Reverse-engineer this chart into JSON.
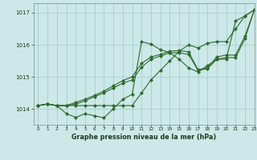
{
  "title": "Graphe pression niveau de la mer (hPa)",
  "bg_color": "#cce8e8",
  "grid_color": "#99cccc",
  "line_color": "#2d6a2d",
  "xlim": [
    -0.5,
    23
  ],
  "ylim": [
    1013.5,
    1017.3
  ],
  "yticks": [
    1014,
    1015,
    1016,
    1017
  ],
  "xticks": [
    0,
    1,
    2,
    3,
    4,
    5,
    6,
    7,
    8,
    9,
    10,
    11,
    12,
    13,
    14,
    15,
    16,
    17,
    18,
    19,
    20,
    21,
    22,
    23
  ],
  "series1": [
    1014.1,
    1014.15,
    1014.1,
    1013.85,
    1013.73,
    1013.85,
    1013.78,
    1013.72,
    1014.0,
    1014.3,
    1014.45,
    1016.1,
    1016.02,
    1015.85,
    1015.75,
    1015.55,
    1015.28,
    1015.15,
    1015.35,
    1015.55,
    1015.55,
    1016.75,
    1016.9,
    1017.1
  ],
  "series2": [
    1014.1,
    1014.15,
    1014.1,
    1014.1,
    1014.1,
    1014.1,
    1014.1,
    1014.1,
    1014.1,
    1014.1,
    1014.1,
    1014.5,
    1014.9,
    1015.2,
    1015.5,
    1015.8,
    1016.0,
    1015.9,
    1016.05,
    1016.1,
    1016.1,
    1016.5,
    1016.9,
    1017.1
  ],
  "series3": [
    1014.1,
    1014.15,
    1014.1,
    1014.1,
    1014.15,
    1014.25,
    1014.38,
    1014.5,
    1014.65,
    1014.8,
    1014.9,
    1015.3,
    1015.55,
    1015.65,
    1015.75,
    1015.75,
    1015.7,
    1015.2,
    1015.25,
    1015.55,
    1015.6,
    1015.6,
    1016.2,
    1017.1
  ],
  "series4": [
    1014.1,
    1014.15,
    1014.1,
    1014.1,
    1014.2,
    1014.3,
    1014.42,
    1014.55,
    1014.72,
    1014.88,
    1015.0,
    1015.42,
    1015.62,
    1015.7,
    1015.8,
    1015.82,
    1015.78,
    1015.22,
    1015.28,
    1015.62,
    1015.68,
    1015.68,
    1016.28,
    1017.1
  ]
}
